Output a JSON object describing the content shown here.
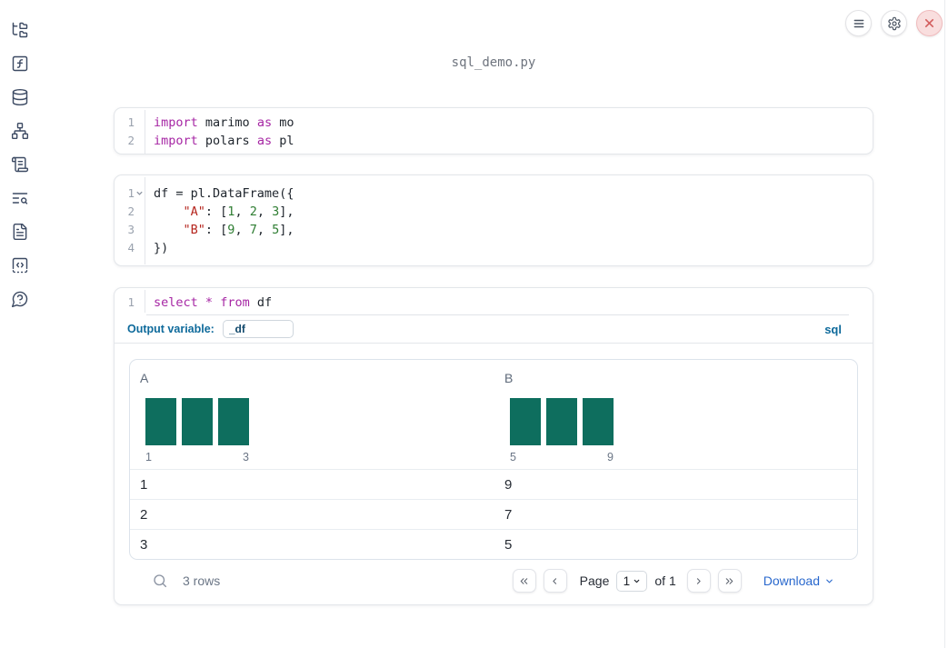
{
  "app_title": "sql_demo.py",
  "topbar": {
    "menu_button": "menu",
    "settings_button": "settings",
    "close_button": "close"
  },
  "sidebar": {
    "icons": [
      "folder-tree",
      "function-square",
      "database",
      "network",
      "scroll-text",
      "text-search",
      "file-text",
      "snippets-code",
      "help-chat"
    ]
  },
  "cells": [
    {
      "type": "code",
      "lines": [
        {
          "num": "1",
          "tokens": [
            [
              "kw",
              "import"
            ],
            [
              "pl",
              " marimo "
            ],
            [
              "kw",
              "as"
            ],
            [
              "pl",
              " mo"
            ]
          ]
        },
        {
          "num": "2",
          "tokens": [
            [
              "kw",
              "import"
            ],
            [
              "pl",
              " polars "
            ],
            [
              "kw",
              "as"
            ],
            [
              "pl",
              " pl"
            ]
          ]
        }
      ]
    },
    {
      "type": "code",
      "lines": [
        {
          "num": "1",
          "fold": true,
          "tokens": [
            [
              "pl",
              "df = pl.DataFrame({"
            ]
          ]
        },
        {
          "num": "2",
          "tokens": [
            [
              "pl",
              "    "
            ],
            [
              "str",
              "\"A\""
            ],
            [
              "pl",
              ": ["
            ],
            [
              "num",
              "1"
            ],
            [
              "pl",
              ", "
            ],
            [
              "num",
              "2"
            ],
            [
              "pl",
              ", "
            ],
            [
              "num",
              "3"
            ],
            [
              "pl",
              "],"
            ]
          ]
        },
        {
          "num": "3",
          "tokens": [
            [
              "pl",
              "    "
            ],
            [
              "str",
              "\"B\""
            ],
            [
              "pl",
              ": ["
            ],
            [
              "num",
              "9"
            ],
            [
              "pl",
              ", "
            ],
            [
              "num",
              "7"
            ],
            [
              "pl",
              ", "
            ],
            [
              "num",
              "5"
            ],
            [
              "pl",
              "],"
            ]
          ]
        },
        {
          "num": "4",
          "tokens": [
            [
              "pl",
              "})"
            ]
          ]
        }
      ]
    }
  ],
  "sql_cell": {
    "lines": [
      {
        "num": "1",
        "tokens": [
          [
            "kw",
            "select"
          ],
          [
            "pl",
            " "
          ],
          [
            "kw",
            "*"
          ],
          [
            "pl",
            " "
          ],
          [
            "kw",
            "from"
          ],
          [
            "pl",
            " df"
          ]
        ]
      }
    ],
    "output_variable_label": "Output variable:",
    "output_variable_value": "_df",
    "language_badge": "sql"
  },
  "table": {
    "columns": [
      {
        "name": "A",
        "histogram": {
          "bar_count": 3,
          "bar_values": [
            1,
            1,
            1
          ],
          "min_label": "1",
          "max_label": "3"
        }
      },
      {
        "name": "B",
        "histogram": {
          "bar_count": 3,
          "bar_values": [
            1,
            1,
            1
          ],
          "min_label": "5",
          "max_label": "9"
        }
      }
    ],
    "rows": [
      [
        "1",
        "9"
      ],
      [
        "2",
        "7"
      ],
      [
        "3",
        "5"
      ]
    ],
    "row_count_label": "3 rows",
    "pagination": {
      "page_label": "Page",
      "page_value": "1",
      "of_label": "of 1"
    },
    "download_label": "Download"
  },
  "colors": {
    "histogram_bar": "#0e6e5e",
    "accent_blue": "#2968cd",
    "sql_label_blue": "#0e6a9b",
    "keyword": "#a626a4",
    "string": "#b5251d",
    "number": "#2e7d32",
    "close_red": "#d35f5f"
  }
}
